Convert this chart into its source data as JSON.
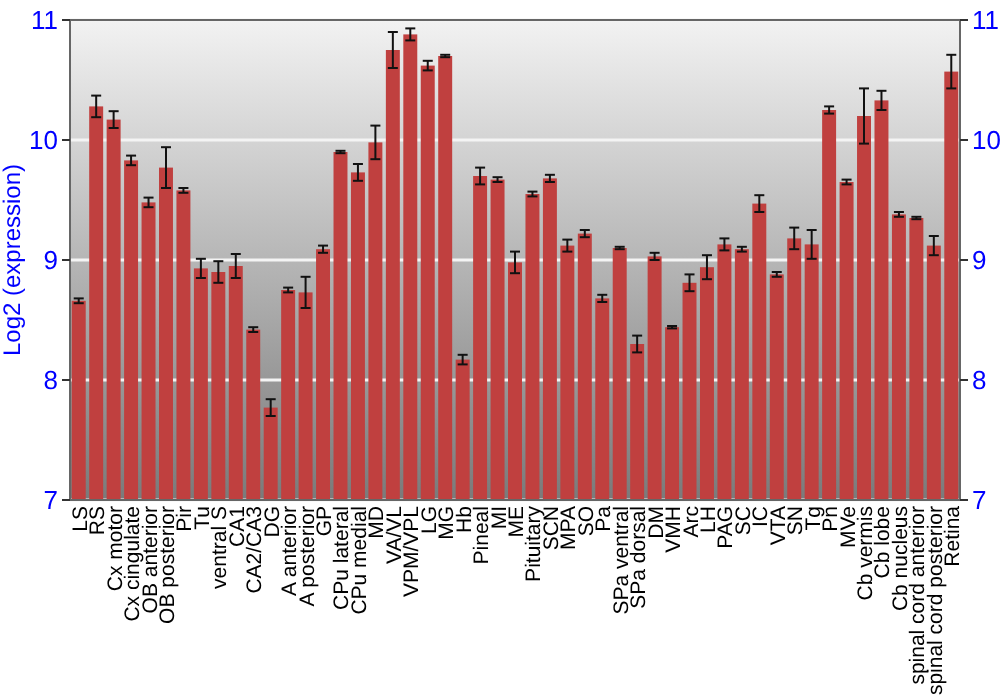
{
  "chart_data": {
    "type": "bar",
    "ylabel": "Log2 (expression)",
    "categories": [
      "LS",
      "RS",
      "Cx motor",
      "Cx cingulate",
      "OB anterior",
      "OB posterior",
      "Pir",
      "Tu",
      "ventral S",
      "CA1",
      "CA2/CA3",
      "DG",
      "A anterior",
      "A posterior",
      "GP",
      "CPu lateral",
      "CPu medial",
      "MD",
      "VA/VL",
      "VPM/VPL",
      "LG",
      "MG",
      "Hb",
      "Pineal",
      "MI",
      "ME",
      "Pituitary",
      "SCN",
      "MPA",
      "SO",
      "Pa",
      "SPa ventral",
      "SPa dorsal",
      "DM",
      "VMH",
      "Arc",
      "LH",
      "PAG",
      "SC",
      "IC",
      "VTA",
      "SN",
      "Tg",
      "Pn",
      "MVe",
      "Cb vermis",
      "Cb lobe",
      "Cb nucleus",
      "spinal cord anterior",
      "spinal cord posterior",
      "Retina"
    ],
    "values": [
      8.66,
      10.28,
      10.17,
      9.83,
      9.48,
      9.77,
      9.58,
      8.93,
      8.9,
      8.95,
      8.42,
      7.77,
      8.75,
      8.73,
      9.09,
      9.9,
      9.73,
      9.98,
      10.75,
      10.88,
      10.62,
      10.7,
      8.17,
      9.7,
      9.67,
      8.98,
      9.55,
      9.68,
      9.12,
      9.22,
      8.68,
      9.1,
      8.3,
      9.03,
      8.44,
      8.81,
      8.94,
      9.13,
      9.09,
      9.47,
      8.88,
      9.18,
      9.13,
      10.25,
      9.65,
      10.2,
      10.33,
      9.38,
      9.35,
      9.12,
      10.57
    ],
    "errors": [
      0.02,
      0.09,
      0.07,
      0.04,
      0.04,
      0.17,
      0.02,
      0.08,
      0.09,
      0.1,
      0.02,
      0.07,
      0.02,
      0.13,
      0.03,
      0.01,
      0.07,
      0.14,
      0.15,
      0.05,
      0.04,
      0.01,
      0.04,
      0.07,
      0.02,
      0.09,
      0.02,
      0.03,
      0.05,
      0.03,
      0.03,
      0.01,
      0.07,
      0.03,
      0.01,
      0.07,
      0.1,
      0.05,
      0.02,
      0.07,
      0.02,
      0.09,
      0.12,
      0.03,
      0.02,
      0.23,
      0.08,
      0.02,
      0.01,
      0.08,
      0.14
    ],
    "color": "#c0403f",
    "ylim": [
      7,
      11
    ],
    "yticks": [
      7,
      8,
      9,
      10,
      11
    ],
    "y2lim": [
      7,
      11
    ],
    "y2ticks": [
      7,
      8,
      9,
      10,
      11
    ],
    "grid": "y"
  }
}
